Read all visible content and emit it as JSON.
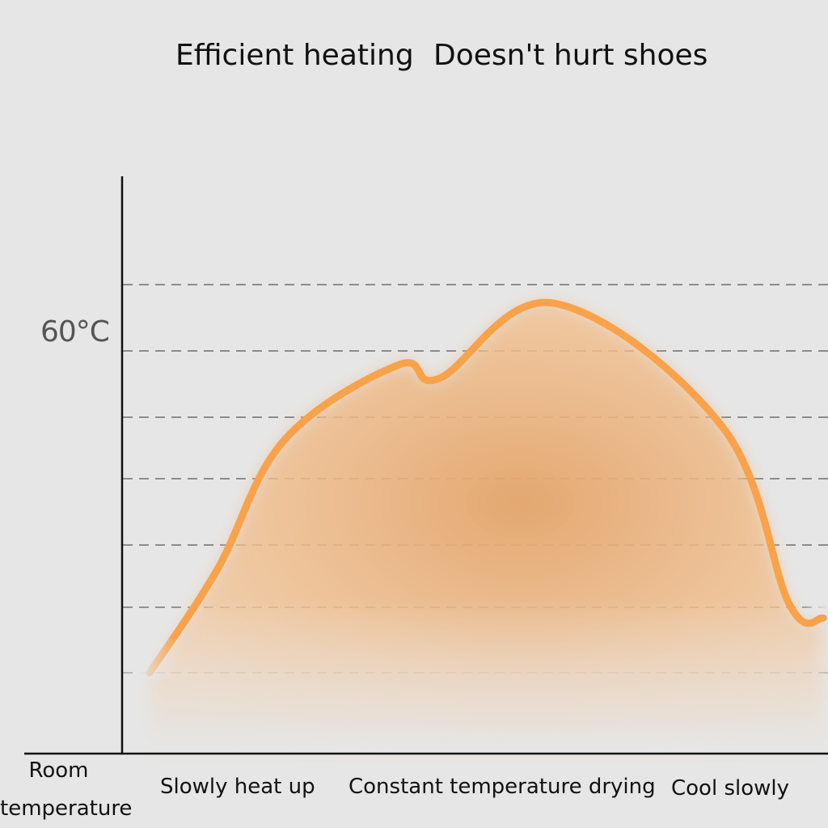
{
  "headline": {
    "left": "Efficient heating",
    "right": "Doesn't hurt shoes"
  },
  "y_marker_label": "60°C",
  "origin_label": {
    "line1": "Room",
    "line2": "temperature"
  },
  "phases": [
    "Slowly heat up",
    "Constant temperature drying",
    "Cool slowly"
  ],
  "colors": {
    "background": "#e6e6e6",
    "curve": "#f9a24a",
    "fill": "#e8a768",
    "gridline": "#8c8c8c",
    "axis": "#111111"
  },
  "chart_data": {
    "type": "area",
    "title": "",
    "xlabel": "",
    "ylabel": "",
    "x_categories": [
      "Slowly heat up",
      "Constant temperature drying",
      "Cool slowly"
    ],
    "y_reference_label": "60°C",
    "y_origin_label": "Room temperature",
    "gridlines": 7,
    "series": [
      {
        "name": "",
        "points": [
          [
            0.0,
            0.0
          ],
          [
            0.1,
            0.3
          ],
          [
            0.2,
            0.68
          ],
          [
            0.37,
            0.9
          ],
          [
            0.43,
            0.86
          ],
          [
            0.6,
            1.08
          ],
          [
            0.85,
            0.72
          ],
          [
            0.95,
            0.2
          ],
          [
            1.0,
            0.16
          ]
        ]
      }
    ]
  }
}
